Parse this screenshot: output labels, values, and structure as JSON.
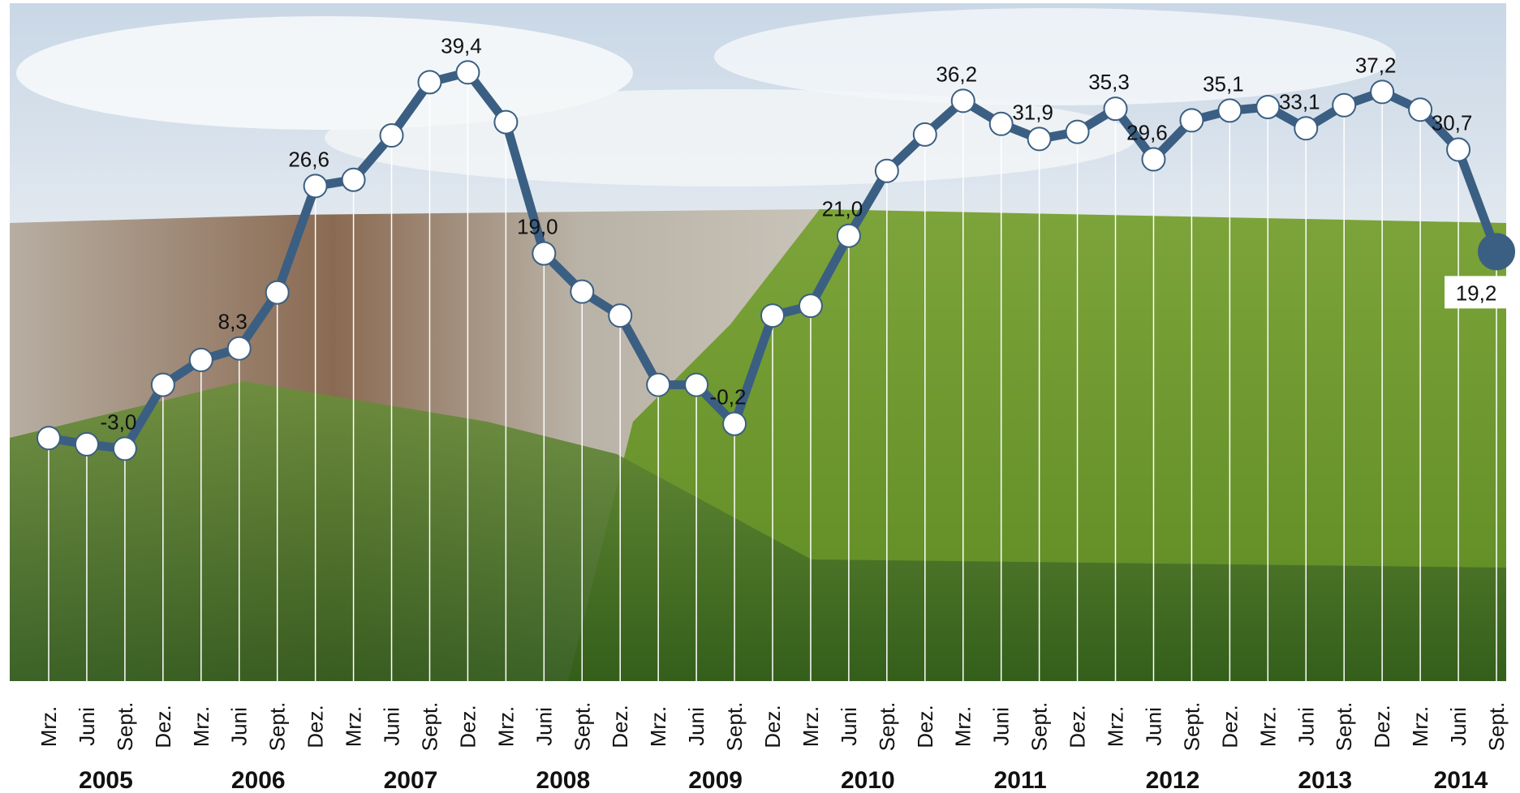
{
  "chart_data": {
    "type": "line",
    "categories": [
      "Mrz.",
      "Juni",
      "Sept.",
      "Dez.",
      "Mrz.",
      "Juni",
      "Sept.",
      "Dez.",
      "Mrz.",
      "Juni",
      "Sept.",
      "Dez.",
      "Mrz.",
      "Juni",
      "Sept.",
      "Dez.",
      "Mrz.",
      "Juni",
      "Sept.",
      "Dez.",
      "Mrz.",
      "Juni",
      "Sept.",
      "Dez.",
      "Mrz.",
      "Juni",
      "Sept.",
      "Dez.",
      "Mrz.",
      "Juni",
      "Sept.",
      "Dez.",
      "Mrz.",
      "Juni",
      "Sept.",
      "Dez.",
      "Mrz.",
      "Juni",
      "Sept."
    ],
    "years": [
      "2005",
      "2006",
      "2007",
      "2008",
      "2009",
      "2010",
      "2011",
      "2012",
      "2013",
      "2014"
    ],
    "values": [
      -1.8,
      -2.5,
      -3.0,
      4.2,
      7.0,
      8.3,
      14.6,
      26.6,
      27.3,
      32.3,
      38.3,
      39.4,
      33.8,
      19.0,
      14.7,
      12.0,
      4.2,
      4.2,
      -0.2,
      12.0,
      13.1,
      21.0,
      28.3,
      32.4,
      36.2,
      33.6,
      31.9,
      32.7,
      35.3,
      29.6,
      34.0,
      35.1,
      35.5,
      33.1,
      35.7,
      37.2,
      35.2,
      30.7,
      19.2
    ],
    "value_labels": [
      null,
      null,
      "-3,0",
      null,
      null,
      "8,3",
      null,
      "26,6",
      null,
      null,
      null,
      "39,4",
      null,
      "19,0",
      null,
      null,
      null,
      null,
      "-0,2",
      null,
      null,
      "21,0",
      null,
      null,
      "36,2",
      null,
      "31,9",
      null,
      "35,3",
      "29,6",
      null,
      "35,1",
      null,
      "33,1",
      null,
      "37,2",
      null,
      "30,7",
      "19,2"
    ],
    "color": "#3b5f82",
    "ylim": [
      -10,
      45
    ]
  }
}
